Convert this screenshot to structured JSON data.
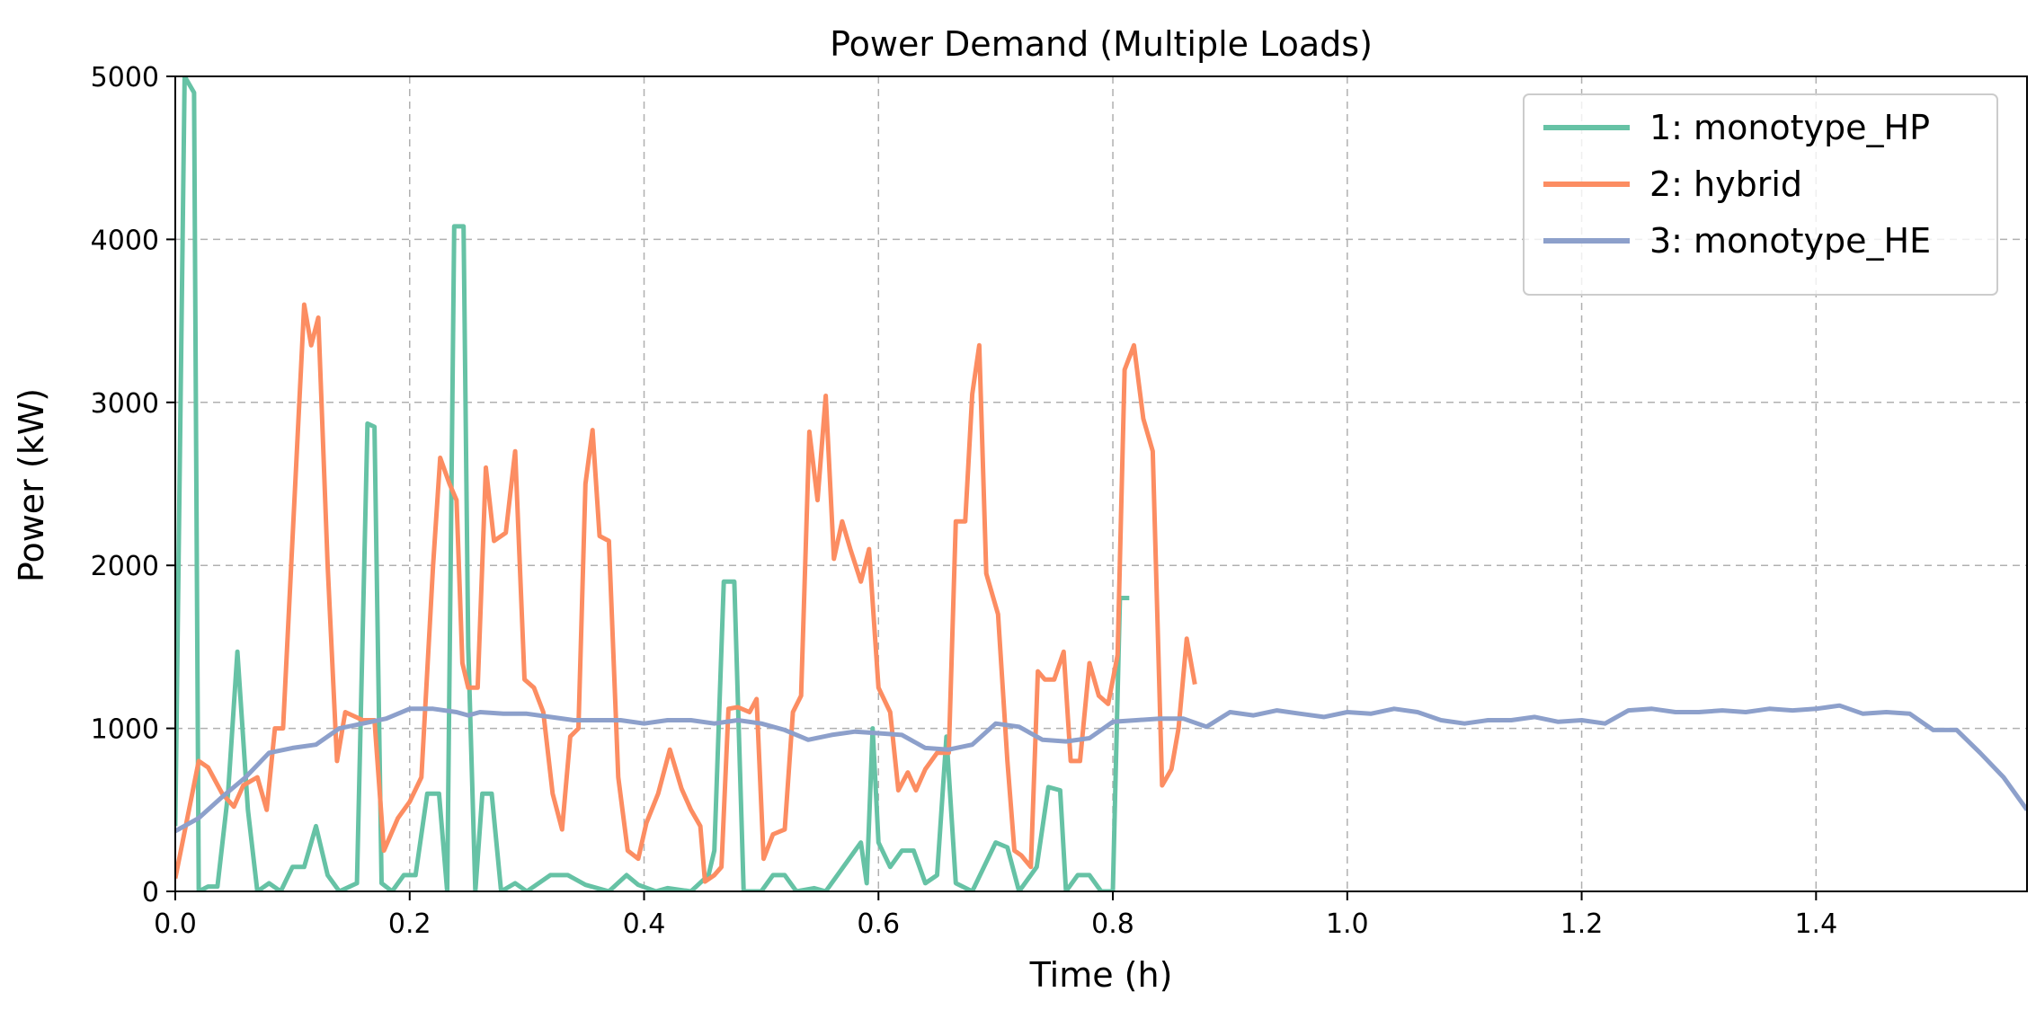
{
  "chart_data": {
    "type": "line",
    "title": "Power Demand (Multiple Loads)",
    "xlabel": "Time (h)",
    "ylabel": "Power (kW)",
    "xlim": [
      0,
      1.58
    ],
    "ylim": [
      0,
      5000
    ],
    "xticks": [
      0.0,
      0.2,
      0.4,
      0.6,
      0.8,
      1.0,
      1.2,
      1.4
    ],
    "xtick_labels": [
      "0.0",
      "0.2",
      "0.4",
      "0.6",
      "0.8",
      "1.0",
      "1.2",
      "1.4"
    ],
    "yticks": [
      0,
      1000,
      2000,
      3000,
      4000,
      5000
    ],
    "ytick_labels": [
      "0",
      "1000",
      "2000",
      "3000",
      "4000",
      "5000"
    ],
    "grid": true,
    "legend_position": "top-right",
    "series": [
      {
        "name": "1: monotype_HP",
        "color": "#66c2a5",
        "points": [
          [
            0.0,
            400
          ],
          [
            0.008,
            5000
          ],
          [
            0.016,
            4900
          ],
          [
            0.02,
            0
          ],
          [
            0.028,
            30
          ],
          [
            0.036,
            30
          ],
          [
            0.045,
            600
          ],
          [
            0.053,
            1470
          ],
          [
            0.062,
            500
          ],
          [
            0.07,
            0
          ],
          [
            0.08,
            50
          ],
          [
            0.09,
            0
          ],
          [
            0.1,
            150
          ],
          [
            0.11,
            150
          ],
          [
            0.12,
            400
          ],
          [
            0.13,
            100
          ],
          [
            0.14,
            0
          ],
          [
            0.155,
            50
          ],
          [
            0.164,
            2870
          ],
          [
            0.17,
            2850
          ],
          [
            0.176,
            50
          ],
          [
            0.185,
            0
          ],
          [
            0.195,
            100
          ],
          [
            0.205,
            100
          ],
          [
            0.215,
            600
          ],
          [
            0.225,
            600
          ],
          [
            0.232,
            0
          ],
          [
            0.238,
            4080
          ],
          [
            0.246,
            4080
          ],
          [
            0.25,
            1500
          ],
          [
            0.256,
            0
          ],
          [
            0.262,
            600
          ],
          [
            0.27,
            600
          ],
          [
            0.278,
            0
          ],
          [
            0.29,
            50
          ],
          [
            0.3,
            0
          ],
          [
            0.32,
            100
          ],
          [
            0.335,
            100
          ],
          [
            0.35,
            40
          ],
          [
            0.37,
            0
          ],
          [
            0.385,
            100
          ],
          [
            0.395,
            40
          ],
          [
            0.41,
            0
          ],
          [
            0.42,
            20
          ],
          [
            0.44,
            0
          ],
          [
            0.455,
            100
          ],
          [
            0.46,
            250
          ],
          [
            0.468,
            1900
          ],
          [
            0.477,
            1900
          ],
          [
            0.485,
            0
          ],
          [
            0.5,
            0
          ],
          [
            0.51,
            100
          ],
          [
            0.52,
            100
          ],
          [
            0.53,
            0
          ],
          [
            0.545,
            20
          ],
          [
            0.555,
            0
          ],
          [
            0.565,
            100
          ],
          [
            0.575,
            200
          ],
          [
            0.585,
            300
          ],
          [
            0.59,
            50
          ],
          [
            0.595,
            1000
          ],
          [
            0.6,
            300
          ],
          [
            0.61,
            150
          ],
          [
            0.62,
            250
          ],
          [
            0.63,
            250
          ],
          [
            0.64,
            50
          ],
          [
            0.65,
            100
          ],
          [
            0.658,
            950
          ],
          [
            0.666,
            50
          ],
          [
            0.68,
            0
          ],
          [
            0.7,
            300
          ],
          [
            0.71,
            270
          ],
          [
            0.72,
            0
          ],
          [
            0.735,
            150
          ],
          [
            0.745,
            640
          ],
          [
            0.755,
            620
          ],
          [
            0.76,
            0
          ],
          [
            0.77,
            100
          ],
          [
            0.78,
            100
          ],
          [
            0.79,
            0
          ],
          [
            0.8,
            0
          ],
          [
            0.806,
            1800
          ],
          [
            0.814,
            1800
          ]
        ]
      },
      {
        "name": "2: hybrid",
        "color": "#fc8d62",
        "points": [
          [
            0.0,
            80
          ],
          [
            0.02,
            800
          ],
          [
            0.028,
            760
          ],
          [
            0.04,
            600
          ],
          [
            0.05,
            520
          ],
          [
            0.058,
            650
          ],
          [
            0.07,
            700
          ],
          [
            0.078,
            500
          ],
          [
            0.085,
            1000
          ],
          [
            0.092,
            1000
          ],
          [
            0.11,
            3600
          ],
          [
            0.116,
            3350
          ],
          [
            0.122,
            3520
          ],
          [
            0.13,
            2000
          ],
          [
            0.138,
            800
          ],
          [
            0.145,
            1100
          ],
          [
            0.16,
            1050
          ],
          [
            0.17,
            1050
          ],
          [
            0.178,
            250
          ],
          [
            0.19,
            450
          ],
          [
            0.2,
            550
          ],
          [
            0.21,
            700
          ],
          [
            0.22,
            2000
          ],
          [
            0.226,
            2660
          ],
          [
            0.234,
            2500
          ],
          [
            0.24,
            2400
          ],
          [
            0.245,
            1400
          ],
          [
            0.25,
            1250
          ],
          [
            0.258,
            1250
          ],
          [
            0.265,
            2600
          ],
          [
            0.272,
            2150
          ],
          [
            0.282,
            2200
          ],
          [
            0.29,
            2700
          ],
          [
            0.298,
            1300
          ],
          [
            0.306,
            1250
          ],
          [
            0.314,
            1100
          ],
          [
            0.322,
            600
          ],
          [
            0.33,
            380
          ],
          [
            0.337,
            950
          ],
          [
            0.344,
            1000
          ],
          [
            0.35,
            2500
          ],
          [
            0.356,
            2830
          ],
          [
            0.362,
            2180
          ],
          [
            0.37,
            2150
          ],
          [
            0.378,
            700
          ],
          [
            0.386,
            250
          ],
          [
            0.395,
            200
          ],
          [
            0.402,
            420
          ],
          [
            0.412,
            600
          ],
          [
            0.422,
            870
          ],
          [
            0.432,
            630
          ],
          [
            0.44,
            500
          ],
          [
            0.448,
            400
          ],
          [
            0.452,
            60
          ],
          [
            0.46,
            100
          ],
          [
            0.466,
            150
          ],
          [
            0.472,
            1120
          ],
          [
            0.48,
            1130
          ],
          [
            0.49,
            1100
          ],
          [
            0.496,
            1180
          ],
          [
            0.502,
            200
          ],
          [
            0.51,
            350
          ],
          [
            0.52,
            380
          ],
          [
            0.527,
            1100
          ],
          [
            0.534,
            1200
          ],
          [
            0.541,
            2820
          ],
          [
            0.548,
            2400
          ],
          [
            0.555,
            3040
          ],
          [
            0.562,
            2040
          ],
          [
            0.569,
            2270
          ],
          [
            0.576,
            2100
          ],
          [
            0.585,
            1900
          ],
          [
            0.592,
            2100
          ],
          [
            0.6,
            1250
          ],
          [
            0.61,
            1100
          ],
          [
            0.617,
            620
          ],
          [
            0.625,
            730
          ],
          [
            0.632,
            620
          ],
          [
            0.64,
            750
          ],
          [
            0.65,
            850
          ],
          [
            0.66,
            850
          ],
          [
            0.666,
            2270
          ],
          [
            0.674,
            2270
          ],
          [
            0.68,
            3050
          ],
          [
            0.686,
            3350
          ],
          [
            0.692,
            1950
          ],
          [
            0.702,
            1700
          ],
          [
            0.71,
            800
          ],
          [
            0.716,
            250
          ],
          [
            0.722,
            220
          ],
          [
            0.73,
            150
          ],
          [
            0.736,
            1350
          ],
          [
            0.742,
            1300
          ],
          [
            0.75,
            1300
          ],
          [
            0.758,
            1470
          ],
          [
            0.764,
            800
          ],
          [
            0.772,
            800
          ],
          [
            0.78,
            1400
          ],
          [
            0.788,
            1200
          ],
          [
            0.796,
            1150
          ],
          [
            0.804,
            1450
          ],
          [
            0.81,
            3200
          ],
          [
            0.818,
            3350
          ],
          [
            0.826,
            2900
          ],
          [
            0.834,
            2700
          ],
          [
            0.842,
            650
          ],
          [
            0.85,
            750
          ],
          [
            0.856,
            1000
          ],
          [
            0.863,
            1550
          ],
          [
            0.87,
            1270
          ]
        ]
      },
      {
        "name": "3: monotype_HE",
        "color": "#8da0cb",
        "points": [
          [
            0.0,
            370
          ],
          [
            0.02,
            450
          ],
          [
            0.04,
            580
          ],
          [
            0.06,
            700
          ],
          [
            0.08,
            850
          ],
          [
            0.1,
            880
          ],
          [
            0.12,
            900
          ],
          [
            0.14,
            1000
          ],
          [
            0.16,
            1030
          ],
          [
            0.18,
            1060
          ],
          [
            0.2,
            1120
          ],
          [
            0.22,
            1120
          ],
          [
            0.24,
            1100
          ],
          [
            0.25,
            1080
          ],
          [
            0.26,
            1100
          ],
          [
            0.28,
            1090
          ],
          [
            0.3,
            1090
          ],
          [
            0.32,
            1070
          ],
          [
            0.34,
            1050
          ],
          [
            0.36,
            1050
          ],
          [
            0.38,
            1050
          ],
          [
            0.4,
            1030
          ],
          [
            0.42,
            1050
          ],
          [
            0.44,
            1050
          ],
          [
            0.46,
            1030
          ],
          [
            0.48,
            1050
          ],
          [
            0.5,
            1030
          ],
          [
            0.52,
            990
          ],
          [
            0.54,
            930
          ],
          [
            0.56,
            960
          ],
          [
            0.58,
            980
          ],
          [
            0.6,
            970
          ],
          [
            0.62,
            960
          ],
          [
            0.64,
            880
          ],
          [
            0.66,
            870
          ],
          [
            0.68,
            900
          ],
          [
            0.7,
            1030
          ],
          [
            0.72,
            1010
          ],
          [
            0.74,
            930
          ],
          [
            0.76,
            920
          ],
          [
            0.78,
            940
          ],
          [
            0.8,
            1040
          ],
          [
            0.82,
            1050
          ],
          [
            0.84,
            1060
          ],
          [
            0.86,
            1060
          ],
          [
            0.88,
            1010
          ],
          [
            0.9,
            1100
          ],
          [
            0.92,
            1080
          ],
          [
            0.94,
            1110
          ],
          [
            0.96,
            1090
          ],
          [
            0.98,
            1070
          ],
          [
            1.0,
            1100
          ],
          [
            1.02,
            1090
          ],
          [
            1.04,
            1120
          ],
          [
            1.06,
            1100
          ],
          [
            1.08,
            1050
          ],
          [
            1.1,
            1030
          ],
          [
            1.12,
            1050
          ],
          [
            1.14,
            1050
          ],
          [
            1.16,
            1070
          ],
          [
            1.18,
            1040
          ],
          [
            1.2,
            1050
          ],
          [
            1.22,
            1030
          ],
          [
            1.24,
            1110
          ],
          [
            1.26,
            1120
          ],
          [
            1.28,
            1100
          ],
          [
            1.3,
            1100
          ],
          [
            1.32,
            1110
          ],
          [
            1.34,
            1100
          ],
          [
            1.36,
            1120
          ],
          [
            1.38,
            1110
          ],
          [
            1.4,
            1120
          ],
          [
            1.42,
            1140
          ],
          [
            1.44,
            1090
          ],
          [
            1.46,
            1100
          ],
          [
            1.48,
            1090
          ],
          [
            1.5,
            990
          ],
          [
            1.52,
            990
          ],
          [
            1.54,
            850
          ],
          [
            1.56,
            700
          ],
          [
            1.58,
            500
          ]
        ]
      }
    ]
  }
}
